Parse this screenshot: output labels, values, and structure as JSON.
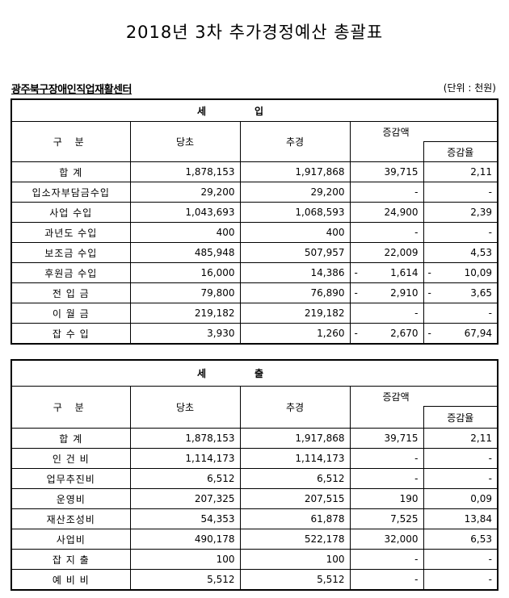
{
  "title": "2018년 3차 추가경정예산 총괄표",
  "org": "광주북구장애인직업재활센터",
  "unit": "(단위 : 천원)",
  "columns": {
    "category": "구   분",
    "original": "당초",
    "revised": "추경",
    "change": "증감액",
    "rate": "증감율"
  },
  "revenue": {
    "title": "세입",
    "rows": [
      {
        "name": "합  계",
        "original": "1,878,153",
        "revised": "1,917,868",
        "change": "39,715",
        "change_neg": false,
        "rate": "2,11",
        "rate_neg": false
      },
      {
        "name": "입소자부담금수입",
        "original": "29,200",
        "revised": "29,200",
        "change": "-",
        "change_neg": false,
        "rate": "-",
        "rate_neg": false
      },
      {
        "name": "사업 수입",
        "original": "1,043,693",
        "revised": "1,068,593",
        "change": "24,900",
        "change_neg": false,
        "rate": "2,39",
        "rate_neg": false
      },
      {
        "name": "과년도 수입",
        "original": "400",
        "revised": "400",
        "change": "-",
        "change_neg": false,
        "rate": "-",
        "rate_neg": false
      },
      {
        "name": "보조금 수입",
        "original": "485,948",
        "revised": "507,957",
        "change": "22,009",
        "change_neg": false,
        "rate": "4,53",
        "rate_neg": false
      },
      {
        "name": "후원금 수입",
        "original": "16,000",
        "revised": "14,386",
        "change": "1,614",
        "change_neg": true,
        "rate": "10,09",
        "rate_neg": true
      },
      {
        "name": "전 입 금",
        "original": "79,800",
        "revised": "76,890",
        "change": "2,910",
        "change_neg": true,
        "rate": "3,65",
        "rate_neg": true
      },
      {
        "name": "이 월 금",
        "original": "219,182",
        "revised": "219,182",
        "change": "-",
        "change_neg": false,
        "rate": "-",
        "rate_neg": false
      },
      {
        "name": "잡 수 입",
        "original": "3,930",
        "revised": "1,260",
        "change": "2,670",
        "change_neg": true,
        "rate": "67,94",
        "rate_neg": true
      }
    ]
  },
  "expenditure": {
    "title": "세출",
    "rows": [
      {
        "name": "합  계",
        "original": "1,878,153",
        "revised": "1,917,868",
        "change": "39,715",
        "change_neg": false,
        "rate": "2,11",
        "rate_neg": false
      },
      {
        "name": "인 건 비",
        "original": "1,114,173",
        "revised": "1,114,173",
        "change": "-",
        "change_neg": false,
        "rate": "-",
        "rate_neg": false
      },
      {
        "name": "업무추진비",
        "original": "6,512",
        "revised": "6,512",
        "change": "-",
        "change_neg": false,
        "rate": "-",
        "rate_neg": false
      },
      {
        "name": "운영비",
        "original": "207,325",
        "revised": "207,515",
        "change": "190",
        "change_neg": false,
        "rate": "0,09",
        "rate_neg": false
      },
      {
        "name": "재산조성비",
        "original": "54,353",
        "revised": "61,878",
        "change": "7,525",
        "change_neg": false,
        "rate": "13,84",
        "rate_neg": false
      },
      {
        "name": "사업비",
        "original": "490,178",
        "revised": "522,178",
        "change": "32,000",
        "change_neg": false,
        "rate": "6,53",
        "rate_neg": false
      },
      {
        "name": "잡 지 출",
        "original": "100",
        "revised": "100",
        "change": "-",
        "change_neg": false,
        "rate": "-",
        "rate_neg": false
      },
      {
        "name": "예 비 비",
        "original": "5,512",
        "revised": "5,512",
        "change": "-",
        "change_neg": false,
        "rate": "-",
        "rate_neg": false
      }
    ]
  }
}
